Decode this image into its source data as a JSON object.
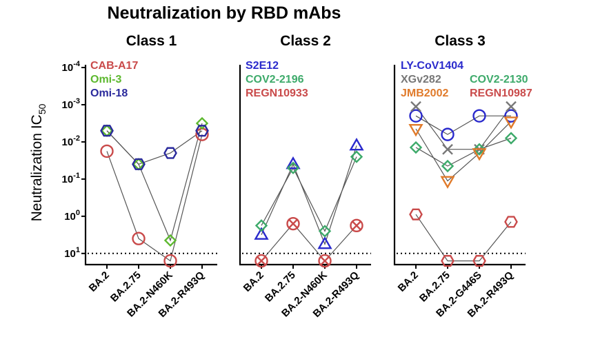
{
  "chart_data": {
    "type": "scatter",
    "title": "Neutralization by RBD mAbs",
    "ylabel": "Neutralization IC",
    "ylabel_sub": "50",
    "y_scale": "log-reversed",
    "y_ticks": [
      {
        "exp": -4,
        "base": "10",
        "sup": "-4"
      },
      {
        "exp": -3,
        "base": "10",
        "sup": "-3"
      },
      {
        "exp": -2,
        "base": "10",
        "sup": "-2"
      },
      {
        "exp": -1,
        "base": "10",
        "sup": "-1"
      },
      {
        "exp": 0,
        "base": "10",
        "sup": "0"
      },
      {
        "exp": 1,
        "base": "10",
        "sup": "1"
      }
    ],
    "ylim_exp": [
      -4,
      1.3
    ],
    "threshold_exp": 1,
    "panels": [
      {
        "title": "Class 1",
        "categories": [
          "BA.2",
          "BA.2.75",
          "BA.2-N460K",
          "BA.2-R493Q"
        ],
        "series": [
          {
            "name": "CAB-A17",
            "color": "#c94a4a",
            "marker": "circle",
            "y_exp": [
              -1.75,
              0.6,
              1.2,
              -2.2
            ],
            "connect": [
              true,
              true,
              true,
              true
            ]
          },
          {
            "name": "Omi-3",
            "color": "#5cb82e",
            "marker": "diamond",
            "y_exp": [
              -2.3,
              -1.4,
              0.65,
              -2.5
            ],
            "connect": [
              true,
              true,
              true,
              true
            ]
          },
          {
            "name": "Omi-18",
            "color": "#2a2a9c",
            "marker": "hexagon",
            "y_exp": [
              -2.3,
              -1.4,
              -1.7,
              -2.3
            ],
            "connect": [
              true,
              true,
              true,
              true
            ]
          }
        ]
      },
      {
        "title": "Class 2",
        "categories": [
          "BA.2",
          "BA.2.75",
          "BA.2-N460K",
          "BA.2-R493Q"
        ],
        "series": [
          {
            "name": "S2E12",
            "color": "#2a2acc",
            "marker": "triangle-up",
            "y_exp": [
              0.5,
              -1.4,
              0.75,
              -1.9
            ],
            "connect": [
              true,
              true,
              true,
              true
            ]
          },
          {
            "name": "COV2-2196",
            "color": "#3daa6a",
            "marker": "diamond",
            "y_exp": [
              0.25,
              -1.3,
              0.4,
              -1.6
            ],
            "connect": [
              true,
              true,
              true,
              true
            ]
          },
          {
            "name": "REGN10933",
            "color": "#c94a4a",
            "marker": "circle-x",
            "y_exp": [
              1.2,
              0.2,
              1.2,
              0.25
            ],
            "connect": [
              true,
              true,
              true,
              true
            ]
          }
        ]
      },
      {
        "title": "Class 3",
        "categories": [
          "BA.2",
          "BA.2.75",
          "BA.2-G446S",
          "BA.2-R493Q"
        ],
        "series": [
          {
            "name": "LY-CoV1404",
            "color": "#2a2acc",
            "marker": "circle",
            "y_exp": [
              -2.7,
              -2.2,
              -2.7,
              -2.7
            ],
            "connect": [
              true,
              true,
              true,
              true
            ]
          },
          {
            "name": "XGv282",
            "color": "#777777",
            "marker": "x",
            "y_exp": [
              -2.95,
              -1.8,
              -1.8,
              -2.95
            ],
            "connect": [
              true,
              true,
              true,
              true
            ]
          },
          {
            "name": "COV2-2130",
            "color": "#3daa6a",
            "marker": "diamond",
            "y_exp": [
              -1.85,
              -1.35,
              -1.8,
              -2.1
            ],
            "connect": [
              true,
              true,
              true,
              true
            ]
          },
          {
            "name": "JMB2002",
            "color": "#e07a2a",
            "marker": "triangle-down",
            "y_exp": [
              -2.35,
              -0.95,
              -1.7,
              -2.55
            ],
            "connect": [
              true,
              true,
              true,
              true
            ]
          },
          {
            "name": "REGN10987",
            "color": "#c94a4a",
            "marker": "hexagon",
            "y_exp": [
              -0.05,
              1.2,
              1.2,
              0.15
            ],
            "connect": [
              true,
              true,
              true,
              true
            ]
          }
        ]
      }
    ]
  }
}
